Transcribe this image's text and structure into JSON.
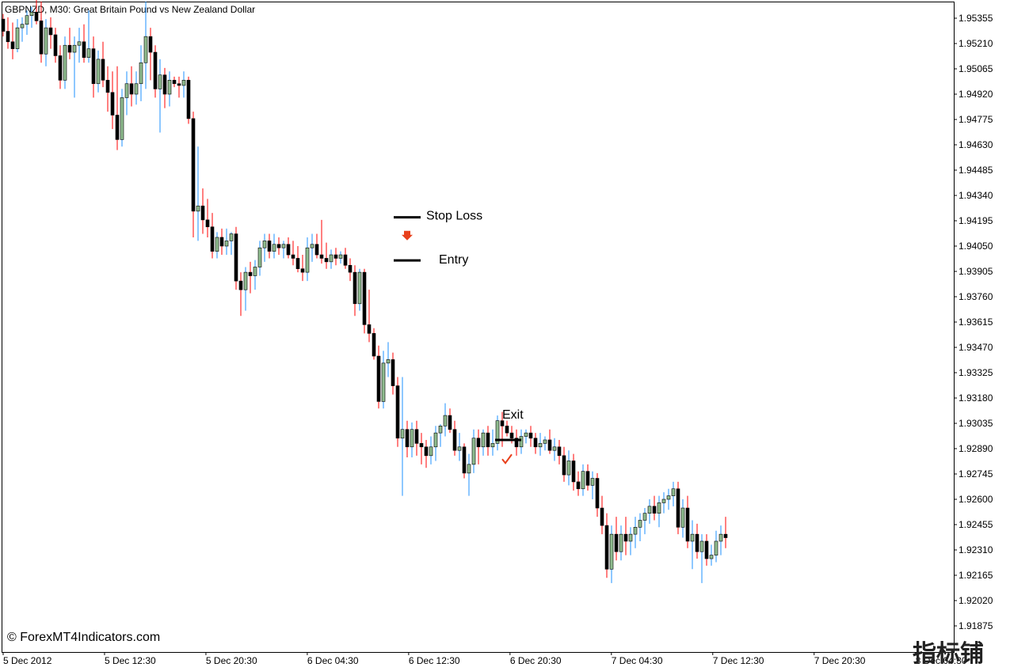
{
  "chart_data": {
    "type": "candlestick",
    "title": "GBPNZD, M30:  Great Britain Pound vs New Zealand Dollar",
    "ylim": [
      1.9174,
      1.955
    ],
    "y_ticks": [
      "1.95355",
      "1.95210",
      "1.95065",
      "1.94920",
      "1.94775",
      "1.94630",
      "1.94485",
      "1.94340",
      "1.94195",
      "1.94050",
      "1.93905",
      "1.93760",
      "1.93615",
      "1.93470",
      "1.93325",
      "1.93180",
      "1.93035",
      "1.92890",
      "1.92745",
      "1.92600",
      "1.92455",
      "1.92310",
      "1.92165",
      "1.92020",
      "1.91875"
    ],
    "x_ticks": [
      "5 Dec 2012",
      "5 Dec 12:30",
      "5 Dec 20:30",
      "6 Dec 04:30",
      "6 Dec 12:30",
      "6 Dec 20:30",
      "7 Dec 04:30",
      "7 Dec 12:30",
      "7 Dec 20:30",
      "8 Dec 04:30"
    ],
    "colors": {
      "bear": "#ff0000",
      "bull": "#1e90ff",
      "body_outline": "#000000",
      "body_up": "#8fbc8f",
      "body_down": "#000000",
      "marker": "#e8401c"
    },
    "series": [
      {
        "ohlc": [
          [
            1.9535,
            1.9538,
            1.9525,
            1.9528
          ],
          [
            1.9528,
            1.9536,
            1.9518,
            1.9522
          ],
          [
            1.9522,
            1.9533,
            1.9512,
            1.9518
          ],
          [
            1.9518,
            1.9535,
            1.9516,
            1.953
          ],
          [
            1.953,
            1.9536,
            1.9522,
            1.9532
          ],
          [
            1.9532,
            1.954,
            1.9526,
            1.9537
          ],
          [
            1.9537,
            1.9542,
            1.953,
            1.9539
          ],
          [
            1.9539,
            1.9546,
            1.9532,
            1.9534
          ],
          [
            1.9534,
            1.9545,
            1.951,
            1.9515
          ],
          [
            1.9515,
            1.9535,
            1.9508,
            1.953
          ],
          [
            1.953,
            1.9536,
            1.9518,
            1.9526
          ],
          [
            1.9526,
            1.953,
            1.951,
            1.9514
          ],
          [
            1.9514,
            1.952,
            1.9495,
            1.95
          ],
          [
            1.95,
            1.9525,
            1.9495,
            1.952
          ],
          [
            1.952,
            1.953,
            1.9512,
            1.9516
          ],
          [
            1.9516,
            1.9525,
            1.949,
            1.952
          ],
          [
            1.952,
            1.953,
            1.951,
            1.9522
          ],
          [
            1.9522,
            1.9532,
            1.951,
            1.9513
          ],
          [
            1.9513,
            1.954,
            1.951,
            1.9518
          ],
          [
            1.9518,
            1.9525,
            1.949,
            1.9498
          ],
          [
            1.9498,
            1.9517,
            1.9493,
            1.9512
          ],
          [
            1.9512,
            1.9522,
            1.9496,
            1.95
          ],
          [
            1.95,
            1.9508,
            1.9482,
            1.9493
          ],
          [
            1.9493,
            1.9505,
            1.9472,
            1.948
          ],
          [
            1.948,
            1.9508,
            1.946,
            1.9466
          ],
          [
            1.9466,
            1.9495,
            1.9462,
            1.949
          ],
          [
            1.949,
            1.9505,
            1.948,
            1.9498
          ],
          [
            1.9498,
            1.9508,
            1.9485,
            1.9492
          ],
          [
            1.9492,
            1.9505,
            1.9486,
            1.9498
          ],
          [
            1.9498,
            1.952,
            1.9488,
            1.951
          ],
          [
            1.951,
            1.9545,
            1.9495,
            1.9525
          ],
          [
            1.9525,
            1.953,
            1.95,
            1.9516
          ],
          [
            1.9516,
            1.952,
            1.949,
            1.9495
          ],
          [
            1.9495,
            1.9512,
            1.947,
            1.9503
          ],
          [
            1.9503,
            1.9507,
            1.9484,
            1.9492
          ],
          [
            1.9492,
            1.9505,
            1.9485,
            1.95
          ],
          [
            1.95,
            1.9502,
            1.9496,
            1.9498
          ],
          [
            1.9498,
            1.9502,
            1.949,
            1.9497
          ],
          [
            1.9497,
            1.9505,
            1.949,
            1.95
          ],
          [
            1.95,
            1.9502,
            1.9475,
            1.9478
          ],
          [
            1.9478,
            1.9482,
            1.941,
            1.9425
          ],
          [
            1.9425,
            1.9462,
            1.9408,
            1.9428
          ],
          [
            1.9428,
            1.9438,
            1.9412,
            1.942
          ],
          [
            1.942,
            1.9432,
            1.941,
            1.9416
          ],
          [
            1.9416,
            1.9424,
            1.9398,
            1.9402
          ],
          [
            1.9402,
            1.9413,
            1.9398,
            1.941
          ],
          [
            1.941,
            1.9415,
            1.94,
            1.9405
          ],
          [
            1.9405,
            1.9415,
            1.94,
            1.9408
          ],
          [
            1.9408,
            1.9413,
            1.94,
            1.9412
          ],
          [
            1.9412,
            1.9416,
            1.938,
            1.9385
          ],
          [
            1.9385,
            1.939,
            1.9365,
            1.938
          ],
          [
            1.938,
            1.9393,
            1.9368,
            1.939
          ],
          [
            1.939,
            1.9396,
            1.9378,
            1.9388
          ],
          [
            1.9388,
            1.9397,
            1.938,
            1.9393
          ],
          [
            1.9393,
            1.9408,
            1.9388,
            1.9404
          ],
          [
            1.9404,
            1.9412,
            1.9396,
            1.9408
          ],
          [
            1.9408,
            1.9412,
            1.9398,
            1.9402
          ],
          [
            1.9402,
            1.9412,
            1.9398,
            1.9406
          ],
          [
            1.9406,
            1.941,
            1.94,
            1.9404
          ],
          [
            1.9404,
            1.9408,
            1.9398,
            1.9406
          ],
          [
            1.9406,
            1.941,
            1.9398,
            1.94
          ],
          [
            1.94,
            1.9408,
            1.9394,
            1.9398
          ],
          [
            1.9398,
            1.9405,
            1.939,
            1.9392
          ],
          [
            1.9392,
            1.94,
            1.9385,
            1.939
          ],
          [
            1.939,
            1.941,
            1.9385,
            1.9404
          ],
          [
            1.9404,
            1.9412,
            1.9396,
            1.9406
          ],
          [
            1.9406,
            1.9412,
            1.9398,
            1.94
          ],
          [
            1.94,
            1.942,
            1.9395,
            1.9398
          ],
          [
            1.9398,
            1.9407,
            1.9392,
            1.9396
          ],
          [
            1.9396,
            1.9403,
            1.9392,
            1.94
          ],
          [
            1.94,
            1.9404,
            1.9394,
            1.9398
          ],
          [
            1.9398,
            1.9402,
            1.9395,
            1.94
          ],
          [
            1.94,
            1.9404,
            1.9392,
            1.9394
          ],
          [
            1.9394,
            1.9398,
            1.9385,
            1.939
          ],
          [
            1.939,
            1.9394,
            1.9365,
            1.9372
          ],
          [
            1.9372,
            1.9392,
            1.9368,
            1.939
          ],
          [
            1.939,
            1.9392,
            1.9355,
            1.936
          ],
          [
            1.936,
            1.938,
            1.935,
            1.9355
          ],
          [
            1.9355,
            1.9358,
            1.934,
            1.9342
          ],
          [
            1.9342,
            1.9348,
            1.9312,
            1.9316
          ],
          [
            1.9316,
            1.9345,
            1.9312,
            1.9338
          ],
          [
            1.9338,
            1.935,
            1.933,
            1.934
          ],
          [
            1.934,
            1.9344,
            1.932,
            1.9325
          ],
          [
            1.9325,
            1.933,
            1.929,
            1.9295
          ],
          [
            1.9295,
            1.933,
            1.9262,
            1.93
          ],
          [
            1.93,
            1.9305,
            1.9284,
            1.929
          ],
          [
            1.929,
            1.9304,
            1.9284,
            1.93
          ],
          [
            1.93,
            1.9305,
            1.9285,
            1.9292
          ],
          [
            1.9292,
            1.9298,
            1.928,
            1.929
          ],
          [
            1.929,
            1.9294,
            1.9278,
            1.9285
          ],
          [
            1.9285,
            1.9296,
            1.928,
            1.929
          ],
          [
            1.929,
            1.9302,
            1.9282,
            1.9298
          ],
          [
            1.9298,
            1.9303,
            1.929,
            1.9302
          ],
          [
            1.9302,
            1.9315,
            1.9296,
            1.9308
          ],
          [
            1.9308,
            1.9312,
            1.9298,
            1.93
          ],
          [
            1.93,
            1.9305,
            1.9285,
            1.9288
          ],
          [
            1.9288,
            1.9298,
            1.9282,
            1.929
          ],
          [
            1.929,
            1.9292,
            1.9272,
            1.9275
          ],
          [
            1.9275,
            1.9286,
            1.9262,
            1.928
          ],
          [
            1.928,
            1.93,
            1.9275,
            1.9295
          ],
          [
            1.9295,
            1.93,
            1.928,
            1.929
          ],
          [
            1.929,
            1.93,
            1.9285,
            1.9298
          ],
          [
            1.9298,
            1.9302,
            1.9285,
            1.929
          ],
          [
            1.929,
            1.93,
            1.9285,
            1.9292
          ],
          [
            1.9292,
            1.9308,
            1.9288,
            1.9305
          ],
          [
            1.9305,
            1.931,
            1.929,
            1.9302
          ],
          [
            1.9302,
            1.9305,
            1.9296,
            1.9298
          ],
          [
            1.9298,
            1.9302,
            1.9292,
            1.9295
          ],
          [
            1.9295,
            1.93,
            1.9285,
            1.929
          ],
          [
            1.929,
            1.93,
            1.9286,
            1.9296
          ],
          [
            1.9296,
            1.93,
            1.9292,
            1.9298
          ],
          [
            1.9298,
            1.9302,
            1.929,
            1.9295
          ],
          [
            1.9295,
            1.9298,
            1.9286,
            1.929
          ],
          [
            1.929,
            1.9298,
            1.9285,
            1.9292
          ],
          [
            1.9292,
            1.9296,
            1.9288,
            1.9294
          ],
          [
            1.9294,
            1.93,
            1.9286,
            1.9288
          ],
          [
            1.9288,
            1.9295,
            1.9282,
            1.929
          ],
          [
            1.929,
            1.9294,
            1.928,
            1.9285
          ],
          [
            1.9285,
            1.929,
            1.927,
            1.9274
          ],
          [
            1.9274,
            1.9288,
            1.9268,
            1.9282
          ],
          [
            1.9282,
            1.9286,
            1.9265,
            1.927
          ],
          [
            1.927,
            1.9276,
            1.9262,
            1.9266
          ],
          [
            1.9266,
            1.928,
            1.9262,
            1.9276
          ],
          [
            1.9276,
            1.928,
            1.9265,
            1.9268
          ],
          [
            1.9268,
            1.9276,
            1.926,
            1.9272
          ],
          [
            1.9272,
            1.9275,
            1.925,
            1.9255
          ],
          [
            1.9255,
            1.9262,
            1.924,
            1.9245
          ],
          [
            1.9245,
            1.9252,
            1.9215,
            1.922
          ],
          [
            1.922,
            1.9245,
            1.9212,
            1.924
          ],
          [
            1.924,
            1.925,
            1.9225,
            1.923
          ],
          [
            1.923,
            1.9245,
            1.9225,
            1.924
          ],
          [
            1.924,
            1.925,
            1.9228,
            1.9236
          ],
          [
            1.9236,
            1.9244,
            1.9228,
            1.924
          ],
          [
            1.924,
            1.925,
            1.9232,
            1.9244
          ],
          [
            1.9244,
            1.9252,
            1.9236,
            1.9248
          ],
          [
            1.9248,
            1.9255,
            1.924,
            1.9252
          ],
          [
            1.9252,
            1.926,
            1.9246,
            1.9256
          ],
          [
            1.9256,
            1.9262,
            1.9248,
            1.9252
          ],
          [
            1.9252,
            1.9262,
            1.9244,
            1.9258
          ],
          [
            1.9258,
            1.9264,
            1.9252,
            1.926
          ],
          [
            1.926,
            1.9266,
            1.9254,
            1.9262
          ],
          [
            1.9262,
            1.927,
            1.9256,
            1.9266
          ],
          [
            1.9266,
            1.927,
            1.924,
            1.9244
          ],
          [
            1.9244,
            1.926,
            1.9238,
            1.9255
          ],
          [
            1.9255,
            1.9262,
            1.9232,
            1.9236
          ],
          [
            1.9236,
            1.9248,
            1.922,
            1.924
          ],
          [
            1.924,
            1.9246,
            1.9226,
            1.923
          ],
          [
            1.923,
            1.924,
            1.9212,
            1.9236
          ],
          [
            1.9236,
            1.924,
            1.9222,
            1.9226
          ],
          [
            1.9226,
            1.9234,
            1.9222,
            1.9228
          ],
          [
            1.9228,
            1.9242,
            1.9224,
            1.9236
          ],
          [
            1.9236,
            1.9245,
            1.9228,
            1.924
          ],
          [
            1.924,
            1.925,
            1.9232,
            1.9238
          ]
        ]
      }
    ],
    "annotations": [
      {
        "label": "Stop Loss",
        "price": 1.94215
      },
      {
        "label": "Entry",
        "price": 1.93968
      },
      {
        "label": "Exit",
        "price": 1.9294
      }
    ],
    "grid": false,
    "legend": "none"
  },
  "watermark": "© ForexMT4Indicators.com",
  "logo_text": "指标铺"
}
